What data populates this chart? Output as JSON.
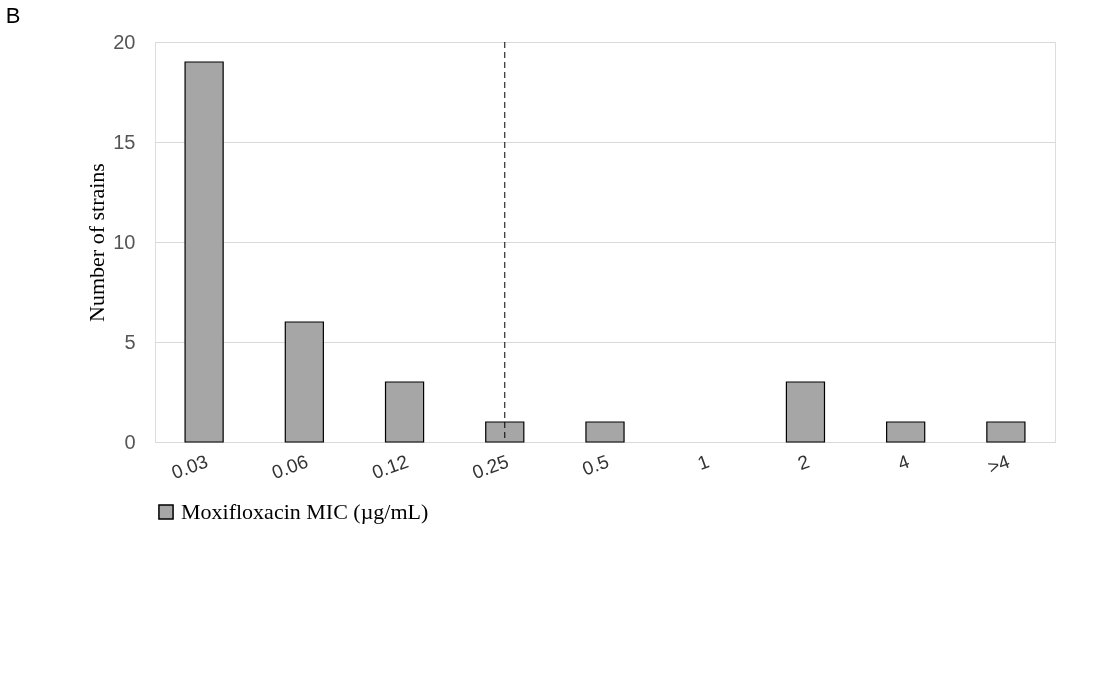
{
  "chart_data": {
    "type": "bar",
    "title": "B",
    "ylabel": "Number of strains",
    "categories": [
      "0.03",
      "0.06",
      "0.12",
      "0.25",
      "0.5",
      "1",
      "2",
      "4",
      ">4"
    ],
    "series": [
      {
        "name": "Moxifloxacin MIC (µg/mL)",
        "color": "#a6a6a6",
        "values": [
          19,
          6,
          3,
          1,
          1,
          0,
          3,
          1,
          1
        ]
      }
    ],
    "ylim": [
      0,
      20
    ],
    "yticks": [
      0,
      5,
      10,
      15,
      20
    ],
    "grid": "y",
    "legend": "bottom",
    "ref_lines": [
      {
        "axis": "x",
        "value": "0.25",
        "line_style": "dashed",
        "color": "#000000"
      }
    ]
  }
}
